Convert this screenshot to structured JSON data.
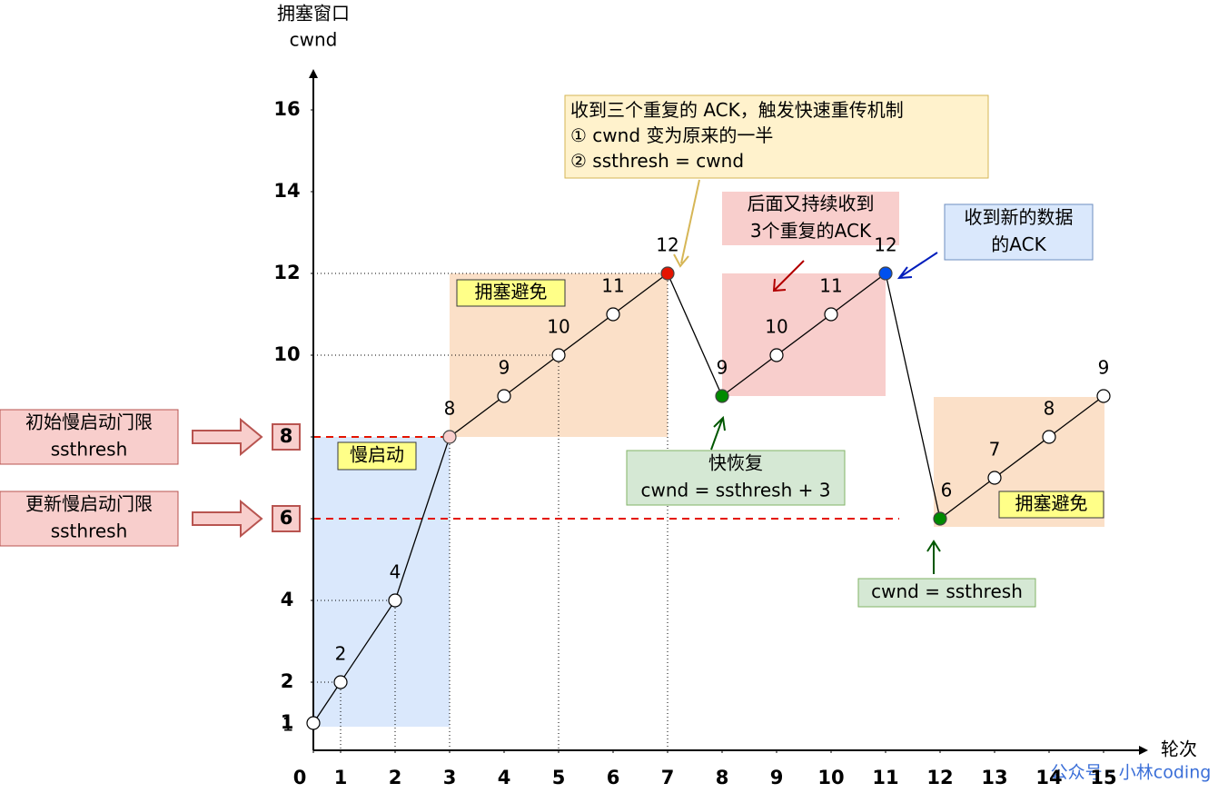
{
  "chart_data": {
    "type": "line",
    "ylabel_lines": [
      "拥塞窗口",
      "cwnd"
    ],
    "xlabel": "轮次",
    "x": [
      0,
      1,
      2,
      3,
      4,
      5,
      6,
      7,
      8,
      9,
      10,
      11,
      12,
      13,
      14,
      15
    ],
    "values": [
      1,
      2,
      4,
      8,
      9,
      10,
      11,
      12,
      9,
      10,
      11,
      12,
      6,
      7,
      8,
      9
    ],
    "point_colors": [
      "#ffffff",
      "#ffffff",
      "#ffffff",
      "#f8cecc",
      "#ffffff",
      "#ffffff",
      "#ffffff",
      "#e51400",
      "#008a00",
      "#ffffff",
      "#ffffff",
      "#0050ef",
      "#008a00",
      "#ffffff",
      "#ffffff",
      "#ffffff"
    ],
    "line_color": "#000000",
    "xticks": [
      0,
      1,
      2,
      3,
      4,
      5,
      6,
      7,
      8,
      9,
      10,
      11,
      12,
      13,
      14,
      15
    ],
    "xlim": [
      0,
      15
    ],
    "yticks": [
      1,
      2,
      4,
      6,
      8,
      10,
      12,
      14,
      16
    ],
    "ylim": [
      0,
      16
    ],
    "annotations": [
      {
        "lines": [
          "收到三个重复的 ACK，触发快速重传机制",
          "① cwnd 变为原来的一半",
          "② ssthresh = cwnd"
        ]
      },
      {
        "lines": [
          "后面又持续收到",
          "3个重复的ACK"
        ]
      },
      {
        "lines": [
          "收到新的数据",
          "的ACK"
        ]
      },
      {
        "lines": [
          "快恢复",
          "cwnd = ssthresh + 3"
        ]
      },
      {
        "lines": [
          "cwnd = ssthresh"
        ]
      },
      {
        "lines": [
          "拥塞避免"
        ]
      },
      {
        "lines": [
          "慢启动"
        ]
      },
      {
        "lines": [
          "拥塞避免"
        ]
      },
      {
        "lines": [
          "初始慢启动门限",
          "ssthresh"
        ]
      },
      {
        "lines": [
          "更新慢启动门限",
          "ssthresh"
        ]
      }
    ],
    "watermark": "公众号 · 小林coding"
  }
}
